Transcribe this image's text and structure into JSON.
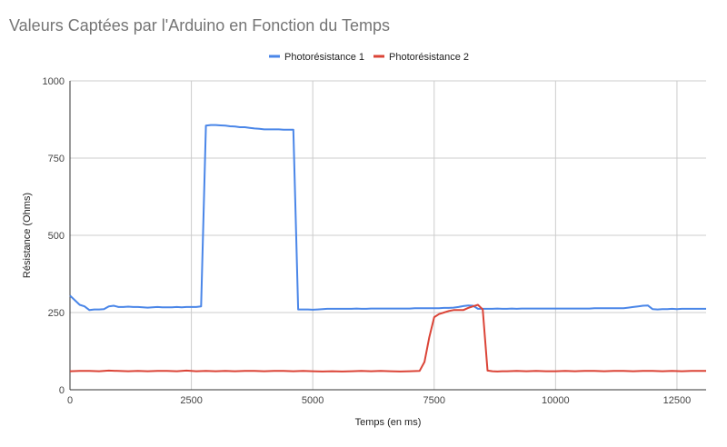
{
  "chart_data": {
    "type": "line",
    "title": "Valeurs Captées par l'Arduino en Fonction du Temps",
    "xlabel": "Temps (en ms)",
    "ylabel": "Résistance (Ohms)",
    "xlim": [
      0,
      13100
    ],
    "ylim": [
      0,
      1000
    ],
    "x_ticks": [
      0,
      2500,
      5000,
      7500,
      10000,
      12500
    ],
    "x_tick_labels": [
      "0",
      "2500",
      "5000",
      "7500",
      "10000",
      "12500"
    ],
    "y_ticks": [
      0,
      250,
      500,
      750,
      1000
    ],
    "y_tick_labels": [
      "0",
      "250",
      "500",
      "750",
      "1000"
    ],
    "grid": true,
    "legend_position": "top",
    "series": [
      {
        "name": "Photorésistance 1",
        "color": "#4a86e8",
        "points": [
          [
            0,
            305
          ],
          [
            100,
            290
          ],
          [
            200,
            275
          ],
          [
            300,
            270
          ],
          [
            400,
            258
          ],
          [
            500,
            260
          ],
          [
            600,
            260
          ],
          [
            700,
            261
          ],
          [
            800,
            270
          ],
          [
            900,
            272
          ],
          [
            1000,
            268
          ],
          [
            1100,
            268
          ],
          [
            1200,
            269
          ],
          [
            1300,
            268
          ],
          [
            1400,
            268
          ],
          [
            1500,
            267
          ],
          [
            1600,
            266
          ],
          [
            1700,
            267
          ],
          [
            1800,
            268
          ],
          [
            1900,
            267
          ],
          [
            2000,
            267
          ],
          [
            2100,
            267
          ],
          [
            2200,
            268
          ],
          [
            2300,
            267
          ],
          [
            2400,
            268
          ],
          [
            2500,
            268
          ],
          [
            2600,
            268
          ],
          [
            2700,
            270
          ],
          [
            2800,
            855
          ],
          [
            2900,
            857
          ],
          [
            3000,
            857
          ],
          [
            3100,
            856
          ],
          [
            3200,
            855
          ],
          [
            3300,
            853
          ],
          [
            3400,
            852
          ],
          [
            3500,
            850
          ],
          [
            3600,
            850
          ],
          [
            3700,
            848
          ],
          [
            3800,
            846
          ],
          [
            3900,
            845
          ],
          [
            4000,
            843
          ],
          [
            4100,
            843
          ],
          [
            4200,
            843
          ],
          [
            4300,
            843
          ],
          [
            4400,
            842
          ],
          [
            4500,
            842
          ],
          [
            4600,
            842
          ],
          [
            4700,
            260
          ],
          [
            4800,
            260
          ],
          [
            4900,
            260
          ],
          [
            5000,
            259
          ],
          [
            5100,
            260
          ],
          [
            5200,
            261
          ],
          [
            5300,
            262
          ],
          [
            5400,
            262
          ],
          [
            5500,
            262
          ],
          [
            5600,
            262
          ],
          [
            5700,
            262
          ],
          [
            5800,
            262
          ],
          [
            5900,
            263
          ],
          [
            6000,
            262
          ],
          [
            6100,
            262
          ],
          [
            6200,
            263
          ],
          [
            6300,
            263
          ],
          [
            6400,
            263
          ],
          [
            6500,
            263
          ],
          [
            6600,
            263
          ],
          [
            6700,
            263
          ],
          [
            6800,
            263
          ],
          [
            6900,
            263
          ],
          [
            7000,
            263
          ],
          [
            7100,
            264
          ],
          [
            7200,
            264
          ],
          [
            7300,
            264
          ],
          [
            7400,
            264
          ],
          [
            7500,
            264
          ],
          [
            7600,
            264
          ],
          [
            7700,
            265
          ],
          [
            7800,
            265
          ],
          [
            7900,
            266
          ],
          [
            8000,
            268
          ],
          [
            8100,
            271
          ],
          [
            8200,
            273
          ],
          [
            8300,
            272
          ],
          [
            8400,
            262
          ],
          [
            8500,
            262
          ],
          [
            8600,
            262
          ],
          [
            8700,
            262
          ],
          [
            8800,
            263
          ],
          [
            8900,
            262
          ],
          [
            9000,
            262
          ],
          [
            9100,
            263
          ],
          [
            9200,
            262
          ],
          [
            9300,
            263
          ],
          [
            9400,
            263
          ],
          [
            9500,
            263
          ],
          [
            9600,
            263
          ],
          [
            9700,
            263
          ],
          [
            9800,
            263
          ],
          [
            9900,
            263
          ],
          [
            10000,
            263
          ],
          [
            10100,
            263
          ],
          [
            10200,
            263
          ],
          [
            10300,
            263
          ],
          [
            10400,
            263
          ],
          [
            10500,
            263
          ],
          [
            10600,
            263
          ],
          [
            10700,
            263
          ],
          [
            10800,
            264
          ],
          [
            10900,
            264
          ],
          [
            11000,
            264
          ],
          [
            11100,
            264
          ],
          [
            11200,
            264
          ],
          [
            11300,
            264
          ],
          [
            11400,
            264
          ],
          [
            11500,
            266
          ],
          [
            11600,
            268
          ],
          [
            11700,
            270
          ],
          [
            11800,
            272
          ],
          [
            11900,
            273
          ],
          [
            12000,
            261
          ],
          [
            12100,
            260
          ],
          [
            12200,
            261
          ],
          [
            12300,
            261
          ],
          [
            12400,
            262
          ],
          [
            12500,
            261
          ],
          [
            12600,
            262
          ],
          [
            12700,
            262
          ],
          [
            12800,
            262
          ],
          [
            12900,
            262
          ],
          [
            13000,
            262
          ],
          [
            13100,
            262
          ]
        ]
      },
      {
        "name": "Photorésistance 2",
        "color": "#db4437",
        "points": [
          [
            0,
            60
          ],
          [
            200,
            61
          ],
          [
            400,
            61
          ],
          [
            600,
            60
          ],
          [
            800,
            62
          ],
          [
            1000,
            61
          ],
          [
            1200,
            60
          ],
          [
            1400,
            61
          ],
          [
            1600,
            60
          ],
          [
            1800,
            61
          ],
          [
            2000,
            61
          ],
          [
            2200,
            60
          ],
          [
            2400,
            62
          ],
          [
            2600,
            60
          ],
          [
            2800,
            61
          ],
          [
            3000,
            60
          ],
          [
            3200,
            61
          ],
          [
            3400,
            60
          ],
          [
            3600,
            61
          ],
          [
            3800,
            61
          ],
          [
            4000,
            60
          ],
          [
            4200,
            61
          ],
          [
            4400,
            61
          ],
          [
            4600,
            60
          ],
          [
            4800,
            61
          ],
          [
            5000,
            60
          ],
          [
            5200,
            59
          ],
          [
            5400,
            60
          ],
          [
            5600,
            59
          ],
          [
            5800,
            60
          ],
          [
            6000,
            61
          ],
          [
            6200,
            60
          ],
          [
            6400,
            61
          ],
          [
            6600,
            60
          ],
          [
            6800,
            59
          ],
          [
            7000,
            60
          ],
          [
            7200,
            61
          ],
          [
            7300,
            90
          ],
          [
            7400,
            170
          ],
          [
            7500,
            235
          ],
          [
            7600,
            245
          ],
          [
            7700,
            250
          ],
          [
            7800,
            255
          ],
          [
            7900,
            258
          ],
          [
            8000,
            258
          ],
          [
            8100,
            258
          ],
          [
            8200,
            265
          ],
          [
            8300,
            270
          ],
          [
            8400,
            275
          ],
          [
            8500,
            260
          ],
          [
            8600,
            62
          ],
          [
            8700,
            60
          ],
          [
            8800,
            59
          ],
          [
            8900,
            60
          ],
          [
            9000,
            60
          ],
          [
            9200,
            61
          ],
          [
            9400,
            60
          ],
          [
            9600,
            61
          ],
          [
            9800,
            60
          ],
          [
            10000,
            60
          ],
          [
            10200,
            61
          ],
          [
            10400,
            60
          ],
          [
            10600,
            61
          ],
          [
            10800,
            61
          ],
          [
            11000,
            60
          ],
          [
            11200,
            61
          ],
          [
            11400,
            61
          ],
          [
            11600,
            60
          ],
          [
            11800,
            61
          ],
          [
            12000,
            61
          ],
          [
            12200,
            60
          ],
          [
            12400,
            61
          ],
          [
            12600,
            60
          ],
          [
            12800,
            61
          ],
          [
            13000,
            61
          ],
          [
            13100,
            61
          ]
        ]
      }
    ]
  }
}
